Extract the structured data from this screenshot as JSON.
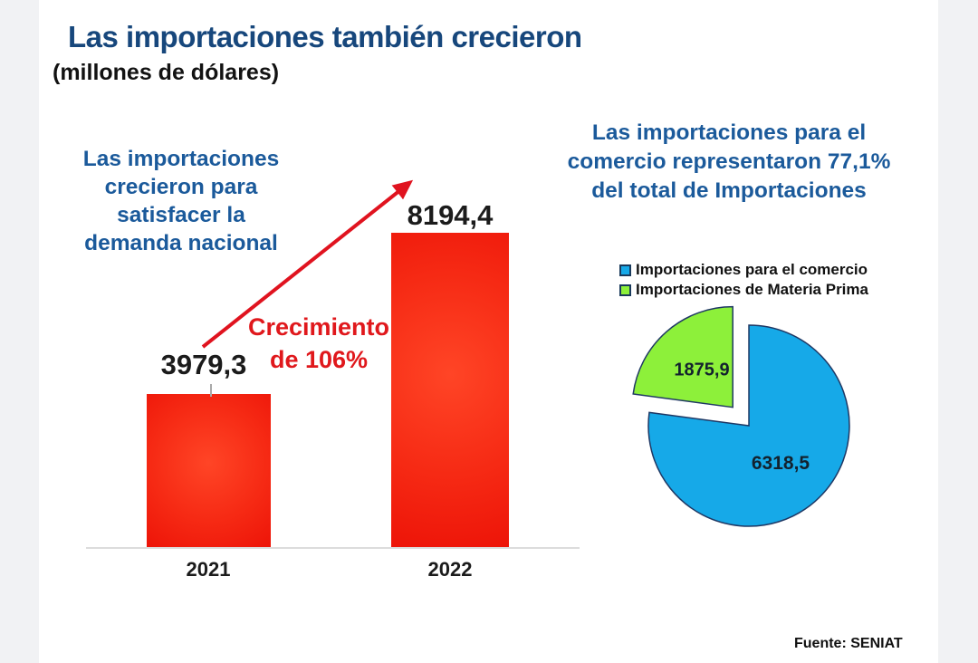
{
  "page": {
    "title": "Las importaciones también crecieron",
    "subtitle": "(millones de dólares)",
    "source": "Fuente: SENIAT"
  },
  "annotations": {
    "left_note": "Las importaciones\ncrecieron para\nsatisfacer la\ndemanda nacional",
    "growth_note": "Crecimiento\nde 106%",
    "right_note": "Las importaciones para el\ncomercio representaron 77,1%\ndel total de Importaciones"
  },
  "colors": {
    "title_blue": "#17477c",
    "note_blue": "#1b5a9b",
    "growth_red": "#e0181c",
    "arrow_red": "#e0131f",
    "bar_red": "#f32011",
    "pie_blue": "#16a9e8",
    "pie_green": "#8df03a",
    "side_strip_gray": "#f1f2f4"
  },
  "chart_data": [
    {
      "type": "bar",
      "title": "Las importaciones también crecieron (millones de dólares)",
      "categories": [
        "2021",
        "2022"
      ],
      "values": [
        3979.3,
        8194.4
      ],
      "value_labels": [
        "3979,3",
        "8194,4"
      ],
      "bar_color": "#f32011",
      "annotation": "Crecimiento de 106%",
      "ylim": [
        0,
        8800
      ],
      "grid": false
    },
    {
      "type": "pie",
      "title": "Las importaciones para el comercio representaron 77,1% del total de Importaciones",
      "labels": [
        "Importaciones para el comercio",
        "Importaciones de Materia Prima"
      ],
      "values": [
        6318.5,
        1875.9
      ],
      "value_labels": [
        "6318,5",
        "1875,9"
      ],
      "percent_of_total_commerce": "77,1%",
      "colors": [
        "#16a9e8",
        "#8df03a"
      ],
      "exploded": [
        false,
        true
      ],
      "legend_position": "top"
    }
  ]
}
